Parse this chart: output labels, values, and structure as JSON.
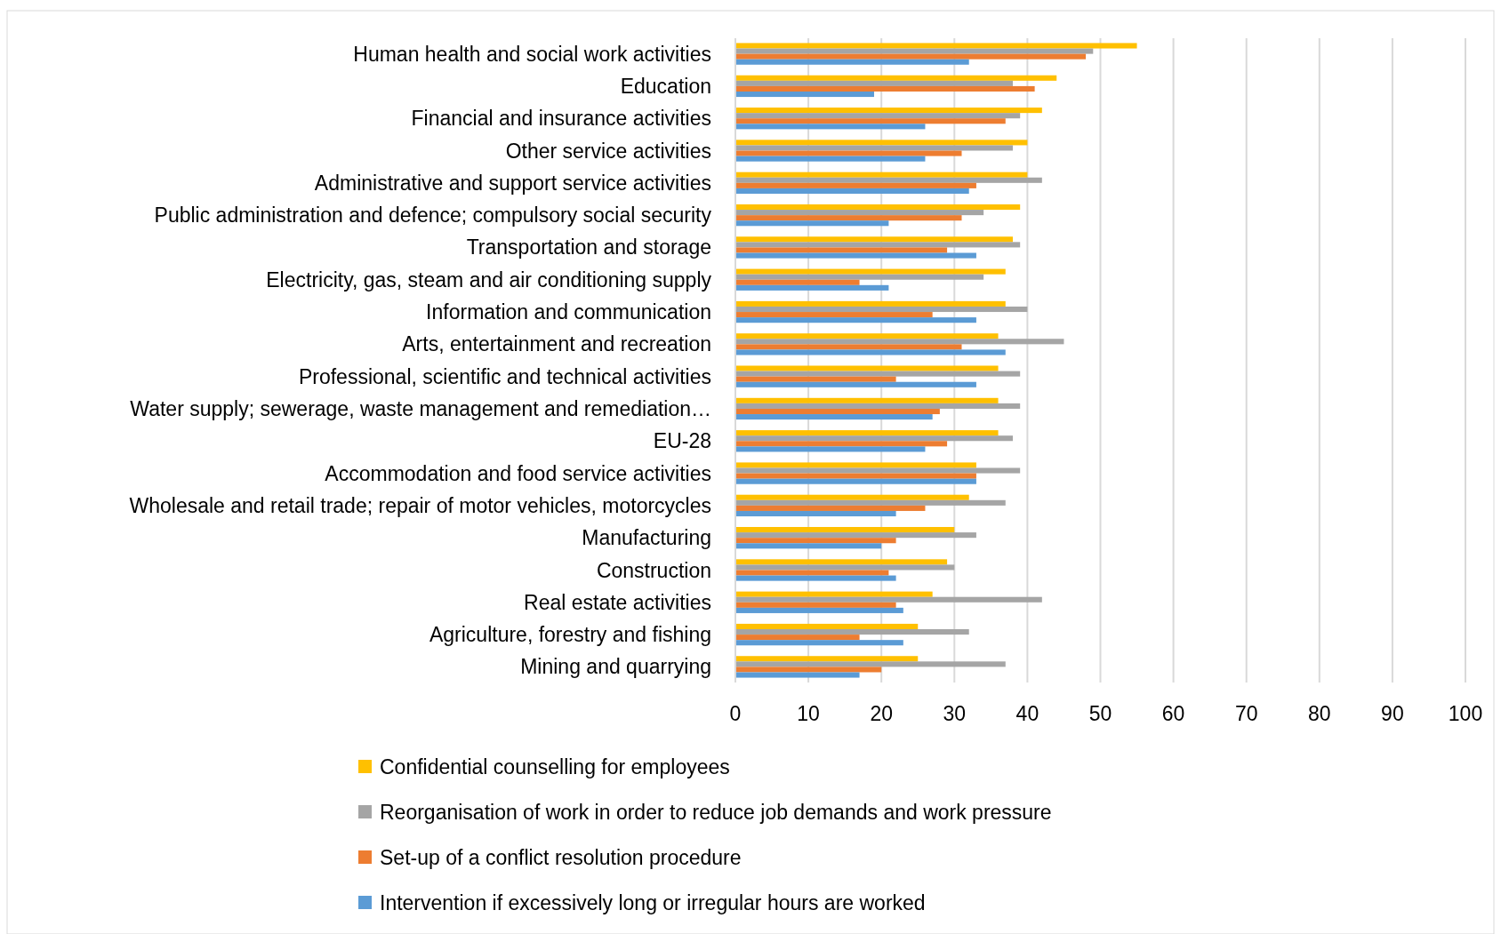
{
  "chart_data": {
    "type": "bar",
    "orientation": "horizontal",
    "categories": [
      "Human health and social work activities",
      "Education",
      "Financial and insurance activities",
      "Other service activities",
      "Administrative and support service activities",
      "Public administration and defence; compulsory social security",
      "Transportation and storage",
      "Electricity, gas, steam and air conditioning supply",
      "Information and communication",
      "Arts, entertainment and recreation",
      "Professional, scientific and technical activities",
      "Water supply; sewerage, waste management and remediation…",
      "EU-28",
      "Accommodation and food service activities",
      "Wholesale and retail trade; repair of motor vehicles, motorcycles",
      "Manufacturing",
      "Construction",
      "Real estate activities",
      "Agriculture, forestry and fishing",
      "Mining and quarrying"
    ],
    "series": [
      {
        "name": "Confidential counselling for employees",
        "color": "#ffc000",
        "values": [
          55,
          44,
          42,
          40,
          40,
          39,
          38,
          37,
          37,
          36,
          36,
          36,
          36,
          33,
          32,
          30,
          29,
          27,
          25,
          25
        ]
      },
      {
        "name": "Reorganisation of work in order to reduce job demands and work pressure",
        "color": "#a5a5a5",
        "values": [
          49,
          38,
          39,
          38,
          42,
          34,
          39,
          34,
          40,
          45,
          39,
          39,
          38,
          39,
          37,
          33,
          30,
          42,
          32,
          37
        ]
      },
      {
        "name": "Set-up of a conflict resolution procedure",
        "color": "#ed7d31",
        "values": [
          48,
          41,
          37,
          31,
          33,
          31,
          29,
          17,
          27,
          31,
          22,
          28,
          29,
          33,
          26,
          22,
          21,
          22,
          17,
          20
        ]
      },
      {
        "name": "Intervention if excessively long or irregular hours are worked",
        "color": "#5b9bd5",
        "values": [
          32,
          19,
          26,
          26,
          32,
          21,
          33,
          21,
          33,
          37,
          33,
          27,
          26,
          33,
          22,
          20,
          22,
          23,
          23,
          17
        ]
      }
    ],
    "xlim": [
      0,
      100
    ],
    "xticks": [
      0,
      10,
      20,
      30,
      40,
      50,
      60,
      70,
      80,
      90,
      100
    ],
    "grid": "x",
    "legend": "bottom"
  }
}
